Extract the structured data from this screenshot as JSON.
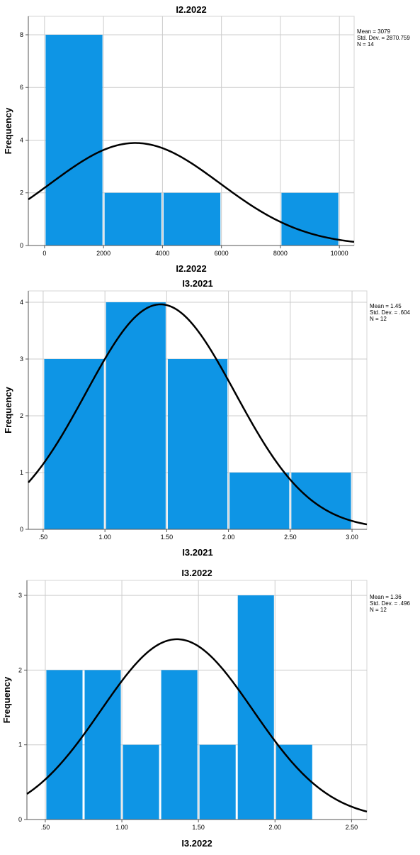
{
  "chart_data": [
    {
      "type": "bar",
      "title": "I2.2022",
      "xlabel": "I2.2022",
      "ylabel": "Frequency",
      "xlim": [
        -550,
        10500
      ],
      "ylim": [
        0,
        8.7
      ],
      "xticks": [
        0,
        2000,
        4000,
        6000,
        8000,
        10000
      ],
      "xtick_labels": [
        "0",
        "2000",
        "4000",
        "6000",
        "8000",
        "10000"
      ],
      "yticks": [
        0,
        2,
        4,
        6,
        8
      ],
      "ytick_labels": [
        "0",
        "2",
        "4",
        "6",
        "8"
      ],
      "bins": [
        {
          "start": 0,
          "end": 2000,
          "value": 8
        },
        {
          "start": 2000,
          "end": 4000,
          "value": 2
        },
        {
          "start": 4000,
          "end": 6000,
          "value": 2
        },
        {
          "start": 6000,
          "end": 8000,
          "value": 0
        },
        {
          "start": 8000,
          "end": 10000,
          "value": 2
        }
      ],
      "stats": [
        "Mean = 3079",
        "Std. Dev. = 2870.759",
        "N = 14"
      ],
      "normal_curve": {
        "mean": 3079,
        "sd": 2870.759,
        "n": 14,
        "bin_width": 2000
      },
      "grid": true,
      "bar_color": "#0e95e5"
    },
    {
      "type": "bar",
      "title": "I3.2021",
      "xlabel": "I3.2021",
      "ylabel": "Frequency",
      "xlim": [
        0.38,
        3.12
      ],
      "ylim": [
        0,
        4.2
      ],
      "xticks": [
        0.5,
        1.0,
        1.5,
        2.0,
        2.5,
        3.0
      ],
      "xtick_labels": [
        ".50",
        "1.00",
        "1.50",
        "2.00",
        "2.50",
        "3.00"
      ],
      "yticks": [
        0,
        1,
        2,
        3,
        4
      ],
      "ytick_labels": [
        "0",
        "1",
        "2",
        "3",
        "4"
      ],
      "bins": [
        {
          "start": 0.5,
          "end": 1.0,
          "value": 3
        },
        {
          "start": 1.0,
          "end": 1.5,
          "value": 4
        },
        {
          "start": 1.5,
          "end": 2.0,
          "value": 3
        },
        {
          "start": 2.0,
          "end": 2.5,
          "value": 1
        },
        {
          "start": 2.5,
          "end": 3.0,
          "value": 1
        }
      ],
      "stats": [
        "Mean = 1.45",
        "Std. Dev. = .604",
        "N = 12"
      ],
      "normal_curve": {
        "mean": 1.45,
        "sd": 0.604,
        "n": 12,
        "bin_width": 0.5
      },
      "grid": true,
      "bar_color": "#0e95e5"
    },
    {
      "type": "bar",
      "title": "I3.2022",
      "xlabel": "I3.2022",
      "ylabel": "Frequency",
      "xlim": [
        0.38,
        2.6
      ],
      "ylim": [
        0,
        3.2
      ],
      "xticks": [
        0.5,
        1.0,
        1.5,
        2.0,
        2.5
      ],
      "xtick_labels": [
        ".50",
        "1.00",
        "1.50",
        "2.00",
        "2.50"
      ],
      "yticks": [
        0,
        1,
        2,
        3
      ],
      "ytick_labels": [
        "0",
        "1",
        "2",
        "3"
      ],
      "bins": [
        {
          "start": 0.5,
          "end": 0.75,
          "value": 2
        },
        {
          "start": 0.75,
          "end": 1.0,
          "value": 2
        },
        {
          "start": 1.0,
          "end": 1.25,
          "value": 1
        },
        {
          "start": 1.25,
          "end": 1.5,
          "value": 2
        },
        {
          "start": 1.5,
          "end": 1.75,
          "value": 1
        },
        {
          "start": 1.75,
          "end": 2.0,
          "value": 3
        },
        {
          "start": 2.0,
          "end": 2.25,
          "value": 1
        }
      ],
      "stats": [
        "Mean = 1.36",
        "Std. Dev. = .496",
        "N = 12"
      ],
      "normal_curve": {
        "mean": 1.36,
        "sd": 0.496,
        "n": 12,
        "bin_width": 0.25
      },
      "grid": true,
      "bar_color": "#0e95e5"
    }
  ]
}
